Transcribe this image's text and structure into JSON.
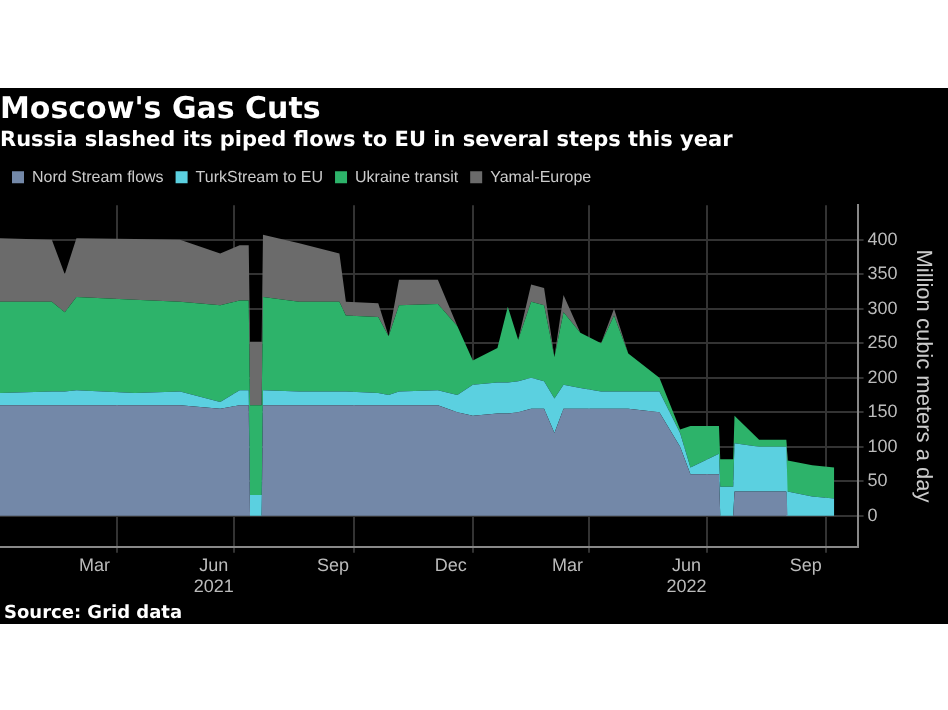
{
  "chart_data": {
    "type": "area",
    "stacked": true,
    "title": "Moscow's Gas Cuts",
    "subtitle": "Russia slashed its piped flows to EU in several steps this year",
    "ylabel": "Million cubic meters a day",
    "annotations": [
      "Source: Grid data"
    ],
    "legend": "top left",
    "grid": true,
    "x": [
      "2021-01-01",
      "2021-02-10",
      "2021-02-20",
      "2021-03-01",
      "2021-04-15",
      "2021-05-20",
      "2021-06-20",
      "2021-07-05",
      "2021-07-12",
      "2021-07-13",
      "2021-07-22",
      "2021-07-23",
      "2021-08-20",
      "2021-09-20",
      "2021-09-25",
      "2021-10-20",
      "2021-10-28",
      "2021-11-05",
      "2021-12-05",
      "2021-12-20",
      "2022-01-01",
      "2022-01-20",
      "2022-01-28",
      "2022-02-05",
      "2022-02-15",
      "2022-02-25",
      "2022-03-05",
      "2022-03-12",
      "2022-03-25",
      "2022-04-10",
      "2022-04-20",
      "2022-05-01",
      "2022-05-25",
      "2022-06-10",
      "2022-06-18",
      "2022-07-10",
      "2022-07-11",
      "2022-07-21",
      "2022-07-22",
      "2022-08-10",
      "2022-08-31",
      "2022-09-01",
      "2022-09-20",
      "2022-10-07"
    ],
    "series": [
      {
        "name": "Nord Stream flows",
        "color": "#7388a8",
        "values": [
          160,
          160,
          160,
          160,
          160,
          160,
          155,
          160,
          160,
          0,
          0,
          160,
          160,
          160,
          160,
          160,
          160,
          160,
          160,
          150,
          145,
          148,
          148,
          150,
          155,
          155,
          120,
          155,
          155,
          155,
          155,
          155,
          150,
          100,
          60,
          60,
          0,
          0,
          35,
          35,
          35,
          0,
          0,
          0
        ]
      },
      {
        "name": "TurkStream to EU",
        "color": "#5bd0e0",
        "values": [
          18,
          20,
          20,
          22,
          18,
          20,
          10,
          22,
          22,
          30,
          30,
          22,
          20,
          20,
          20,
          18,
          15,
          20,
          22,
          25,
          45,
          45,
          45,
          45,
          45,
          40,
          50,
          35,
          30,
          25,
          25,
          25,
          30,
          20,
          10,
          30,
          42,
          42,
          70,
          65,
          65,
          35,
          28,
          25
        ]
      },
      {
        "name": "Ukraine transit",
        "color": "#2db36a",
        "values": [
          132,
          130,
          115,
          135,
          135,
          130,
          140,
          130,
          130,
          130,
          130,
          135,
          130,
          130,
          110,
          110,
          85,
          125,
          125,
          100,
          35,
          50,
          110,
          60,
          110,
          110,
          60,
          105,
          80,
          70,
          110,
          55,
          20,
          5,
          60,
          40,
          40,
          40,
          40,
          10,
          10,
          45,
          45,
          45
        ]
      },
      {
        "name": "Yamal-Europe",
        "color": "#6b6b6b",
        "values": [
          92,
          90,
          55,
          85,
          88,
          90,
          75,
          80,
          80,
          92,
          92,
          90,
          85,
          70,
          20,
          20,
          0,
          37,
          35,
          0,
          0,
          0,
          0,
          0,
          25,
          25,
          0,
          25,
          0,
          0,
          10,
          0,
          0,
          0,
          0,
          0,
          0,
          0,
          0,
          0,
          0,
          0,
          0,
          0
        ]
      }
    ],
    "xlim": [
      "2021-01-01",
      "2022-10-25"
    ],
    "xticks": [
      {
        "value": "2021-03-15",
        "label": "Mar"
      },
      {
        "value": "2021-04-01",
        "label": null
      },
      {
        "value": "2021-06-15",
        "label": "Jun\n2021"
      },
      {
        "value": "2021-07-01",
        "label": null
      },
      {
        "value": "2021-09-15",
        "label": "Sep"
      },
      {
        "value": "2021-10-01",
        "label": null
      },
      {
        "value": "2021-12-15",
        "label": "Dec"
      },
      {
        "value": "2022-01-01",
        "label": null
      },
      {
        "value": "2022-03-15",
        "label": "Mar"
      },
      {
        "value": "2022-04-01",
        "label": null
      },
      {
        "value": "2022-06-15",
        "label": "Jun\n2022"
      },
      {
        "value": "2022-07-01",
        "label": null
      },
      {
        "value": "2022-09-15",
        "label": "Sep"
      },
      {
        "value": "2022-10-01",
        "label": null
      }
    ],
    "ylim": [
      -45,
      450
    ],
    "yticks": [
      0,
      50,
      100,
      150,
      200,
      250,
      300,
      350,
      400
    ]
  }
}
